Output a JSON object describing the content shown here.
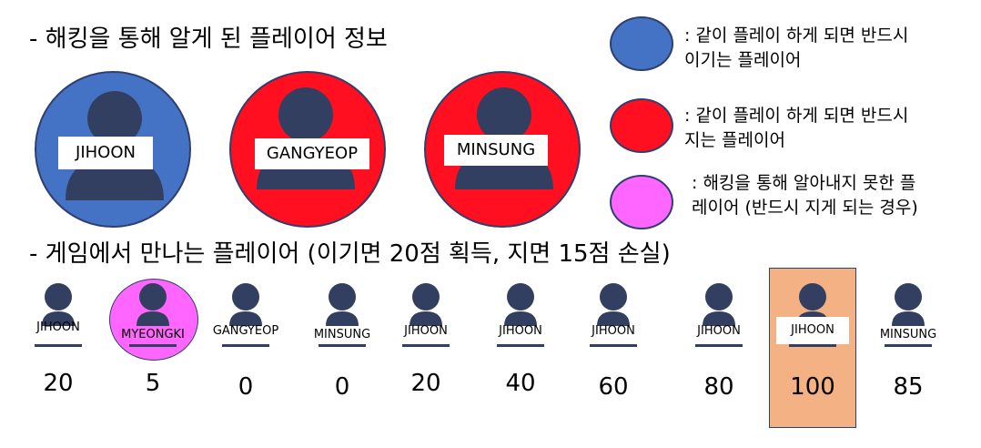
{
  "heading1": "- 해킹을 통해 알게 된 플레이어 정보",
  "heading2": "- 게임에서 만나는 플레이어 (이기면 20점 획득, 지면 15점 손실)",
  "colors": {
    "blue": "#4472c4",
    "red": "#ff0f1f",
    "pink": "#ff66ff",
    "orange": "#f4b183",
    "person": "#333f60"
  },
  "known_players": [
    {
      "name": "JIHOON",
      "color": "blue"
    },
    {
      "name": "GANGYEOP",
      "color": "red"
    },
    {
      "name": "MINSUNG",
      "color": "red"
    }
  ],
  "legend": [
    {
      "color": "blue",
      "line1": ": 같이 플레이 하게 되면 반드시",
      "line2": "이기는 플레이어"
    },
    {
      "color": "red",
      "line1": ": 같이 플레이 하게 되면 반드시",
      "line2": "지는 플레이어"
    },
    {
      "color": "pink",
      "line1": ": 해킹을 통해 알아내지 못한 플",
      "line2": "레이어 (반드시 지게 되는 경우)"
    }
  ],
  "sequence": [
    {
      "name": "JIHOON",
      "score": "20",
      "highlight": "none"
    },
    {
      "name": "MYEONGKI",
      "score": "5",
      "highlight": "pink"
    },
    {
      "name": "GANGYEOP",
      "score": "0",
      "highlight": "none"
    },
    {
      "name": "MINSUNG",
      "score": "0",
      "highlight": "none"
    },
    {
      "name": "JIHOON",
      "score": "20",
      "highlight": "none"
    },
    {
      "name": "JIHOON",
      "score": "40",
      "highlight": "none"
    },
    {
      "name": "JIHOON",
      "score": "60",
      "highlight": "none"
    },
    {
      "name": "JIHOON",
      "score": "80",
      "highlight": "none"
    },
    {
      "name": "JIHOON",
      "score": "100",
      "highlight": "orange"
    },
    {
      "name": "MINSUNG",
      "score": "85",
      "highlight": "none"
    }
  ]
}
